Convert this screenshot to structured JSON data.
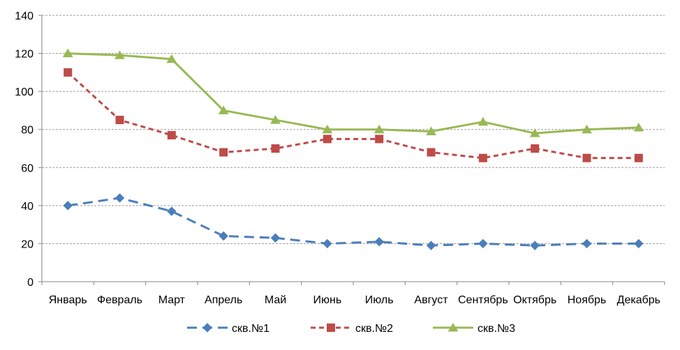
{
  "chart_data": {
    "type": "line",
    "title": "",
    "xlabel": "",
    "ylabel": "",
    "ylim": [
      0,
      140
    ],
    "ytick_step": 20,
    "grid": true,
    "legend_position": "bottom",
    "categories": [
      "Январь",
      "Февраль",
      "Март",
      "Апрель",
      "Май",
      "Июнь",
      "Июль",
      "Август",
      "Сентябрь",
      "Октябрь",
      "Ноябрь",
      "Декабрь"
    ],
    "series": [
      {
        "name": "скв.№1",
        "color": "#4a7ebb",
        "marker": "diamond",
        "dash": "long-dash",
        "values": [
          40,
          44,
          37,
          24,
          23,
          20,
          21,
          19,
          20,
          19,
          20,
          20
        ]
      },
      {
        "name": "скв.№2",
        "color": "#be4b48",
        "marker": "square",
        "dash": "dash",
        "values": [
          110,
          85,
          77,
          68,
          70,
          75,
          75,
          68,
          65,
          70,
          65,
          65
        ]
      },
      {
        "name": "скв.№3",
        "color": "#98b954",
        "marker": "triangle",
        "dash": "solid",
        "values": [
          120,
          119,
          117,
          90,
          85,
          80,
          80,
          79,
          84,
          78,
          80,
          81
        ]
      }
    ]
  }
}
